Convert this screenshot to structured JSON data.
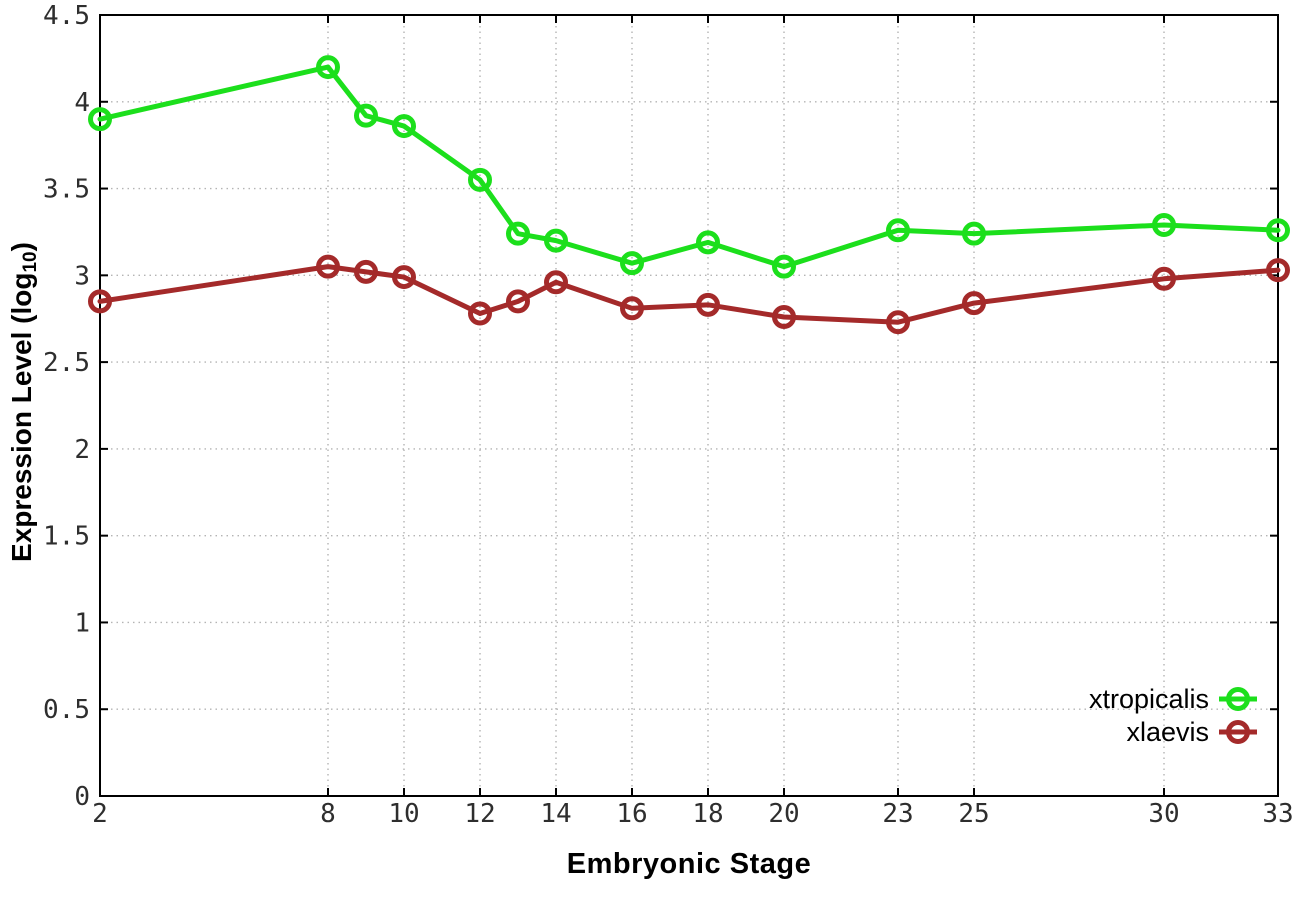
{
  "chart_data": {
    "type": "line",
    "title": "",
    "xlabel": "Embryonic Stage",
    "ylabel": "Expression Level (log10)",
    "ylabel_rich": {
      "pre": "Expression Level (log",
      "sub": "10",
      "post": ")"
    },
    "x": [
      2,
      8,
      9,
      10,
      12,
      13,
      14,
      16,
      18,
      20,
      23,
      25,
      30,
      33
    ],
    "xticks": [
      2,
      8,
      10,
      12,
      14,
      16,
      18,
      20,
      23,
      25,
      30,
      33
    ],
    "yticks": [
      0,
      0.5,
      1,
      1.5,
      2,
      2.5,
      3,
      3.5,
      4,
      4.5
    ],
    "xlim": [
      2,
      33
    ],
    "ylim": [
      0,
      4.5
    ],
    "grid": true,
    "legend_position": "bottom-right",
    "series": [
      {
        "name": "xtropicalis",
        "color": "#1cdf1c",
        "marker": "open-circle",
        "values": [
          3.9,
          4.2,
          3.92,
          3.86,
          3.55,
          3.24,
          3.2,
          3.07,
          3.19,
          3.05,
          3.26,
          3.24,
          3.29,
          3.26
        ]
      },
      {
        "name": "xlaevis",
        "color": "#a42a2a",
        "marker": "open-circle",
        "values": [
          2.85,
          3.05,
          3.02,
          2.99,
          2.78,
          2.85,
          2.96,
          2.81,
          2.83,
          2.76,
          2.73,
          2.84,
          2.98,
          3.03
        ]
      }
    ],
    "style": {
      "border_color": "#000000",
      "grid_color": "#b4b4b4",
      "tick_label_color": "#2e2e2e",
      "line_width": 5,
      "marker_radius": 9.5
    }
  }
}
